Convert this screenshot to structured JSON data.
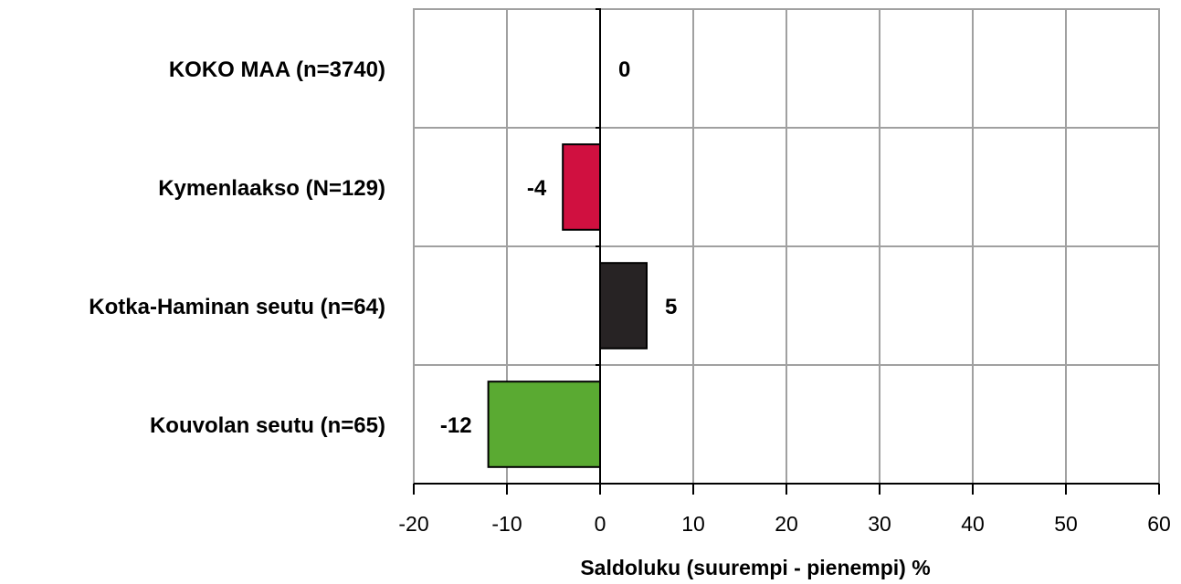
{
  "chart_data": {
    "type": "bar",
    "orientation": "horizontal",
    "categories": [
      "KOKO MAA  (n=3740)",
      "Kymenlaakso (N=129)",
      "Kotka-Haminan seutu (n=64)",
      "Kouvolan seutu (n=65)"
    ],
    "values": [
      0,
      -4,
      5,
      -12
    ],
    "data_labels": [
      "0",
      "-4",
      "5",
      "-12"
    ],
    "colors": [
      "#ffffff",
      "#d01040",
      "#272324",
      "#5aaa32"
    ],
    "xlabel": "Saldoluku (suurempi - pienempi) %",
    "xlim": [
      -20,
      60
    ],
    "xticks": [
      -20,
      -10,
      0,
      10,
      20,
      30,
      40,
      50,
      60
    ],
    "xtick_labels": [
      "-20",
      "-10",
      "0",
      "10",
      "20",
      "30",
      "40",
      "50",
      "60"
    ],
    "grid": true,
    "legend": "none"
  }
}
